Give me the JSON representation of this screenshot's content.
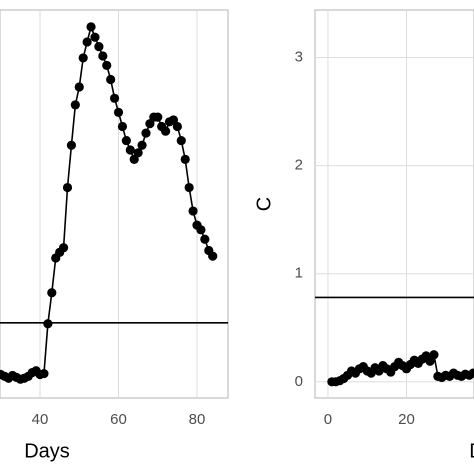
{
  "chart_data": [
    {
      "type": "line",
      "xlabel": "Days",
      "x": [
        30,
        31,
        32,
        33,
        34,
        35,
        36,
        37,
        38,
        39,
        40,
        41,
        42,
        43,
        44,
        45,
        46,
        47,
        48,
        49,
        50,
        51,
        52,
        53,
        54,
        55,
        56,
        57,
        58,
        59,
        60,
        61,
        62,
        63,
        64,
        65,
        66,
        67,
        68,
        69,
        70,
        71,
        72,
        73,
        74,
        75,
        76,
        77,
        78,
        79,
        80,
        81,
        82,
        83,
        84
      ],
      "values": [
        0.06,
        0.04,
        0.02,
        0.05,
        0.03,
        0.01,
        0.02,
        0.04,
        0.08,
        0.1,
        0.06,
        0.07,
        0.6,
        0.93,
        1.3,
        1.36,
        1.41,
        2.05,
        2.5,
        2.93,
        3.12,
        3.43,
        3.6,
        3.76,
        3.65,
        3.55,
        3.45,
        3.35,
        3.2,
        3.0,
        2.85,
        2.7,
        2.55,
        2.45,
        2.35,
        2.42,
        2.5,
        2.63,
        2.73,
        2.8,
        2.8,
        2.7,
        2.65,
        2.75,
        2.77,
        2.7,
        2.55,
        2.35,
        2.05,
        1.8,
        1.65,
        1.6,
        1.5,
        1.38,
        1.32
      ],
      "hline": 0.61,
      "xlim": [
        29.8,
        87.9
      ],
      "ylim": [
        -0.19,
        3.94
      ],
      "xticks": [
        40,
        60,
        80
      ],
      "grid": true
    },
    {
      "type": "line",
      "xlabel": "Days",
      "ylabel": "C",
      "x": [
        1,
        2,
        3,
        4,
        5,
        6,
        7,
        8,
        9,
        10,
        11,
        12,
        13,
        14,
        15,
        16,
        17,
        18,
        19,
        20,
        21,
        22,
        23,
        24,
        25,
        26,
        27,
        28,
        29,
        30,
        31,
        32,
        33,
        34,
        35,
        36,
        37
      ],
      "values": [
        0.0,
        0.0,
        0.01,
        0.03,
        0.06,
        0.1,
        0.08,
        0.12,
        0.14,
        0.1,
        0.08,
        0.13,
        0.1,
        0.15,
        0.12,
        0.09,
        0.14,
        0.18,
        0.15,
        0.12,
        0.16,
        0.2,
        0.17,
        0.21,
        0.24,
        0.19,
        0.25,
        0.05,
        0.04,
        0.06,
        0.05,
        0.08,
        0.06,
        0.05,
        0.07,
        0.06,
        0.08
      ],
      "hline": 0.78,
      "xlim": [
        -3.3,
        37.2
      ],
      "ylim": [
        -0.15,
        3.44
      ],
      "xticks": [
        0,
        20
      ],
      "yticks": [
        0,
        1,
        2,
        3
      ],
      "grid": true
    }
  ]
}
